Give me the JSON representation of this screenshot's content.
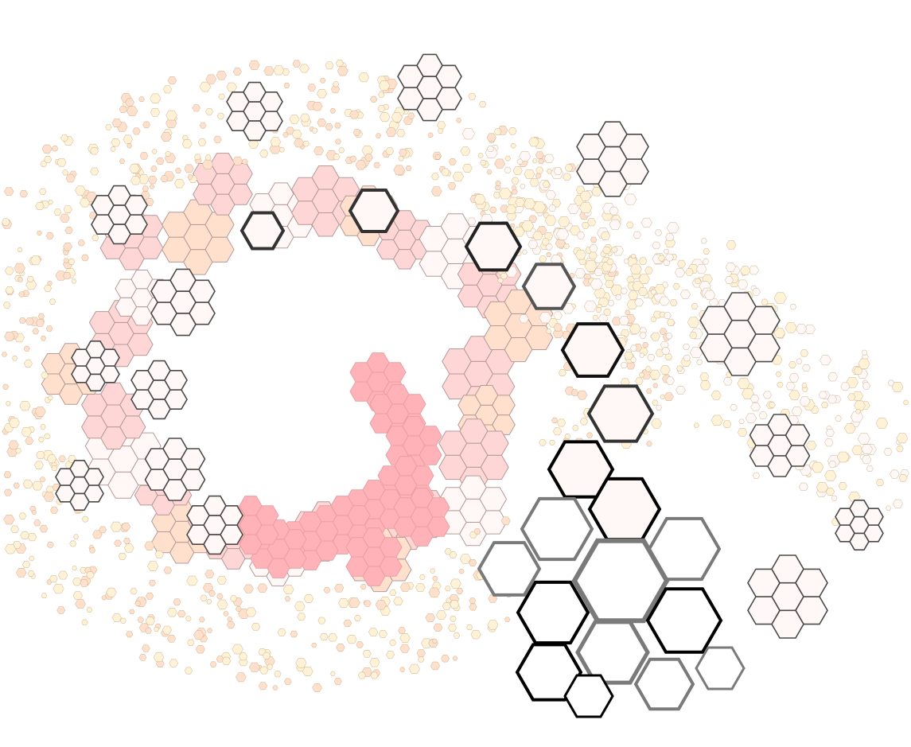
{
  "artwork": {
    "subject": "hexagonal-fractal-spiral",
    "palette": {
      "background": "#ffffff",
      "inner_pink": "#ffb3b8",
      "mid_pink": "#ffd6d6",
      "peach": "#ffe0cc",
      "cream": "#fff2d6",
      "pale_white": "#fff8f6",
      "stroke_dark": "#111111",
      "stroke_mid": "#7a7a7a",
      "stroke_light": "#b59a98"
    }
  }
}
